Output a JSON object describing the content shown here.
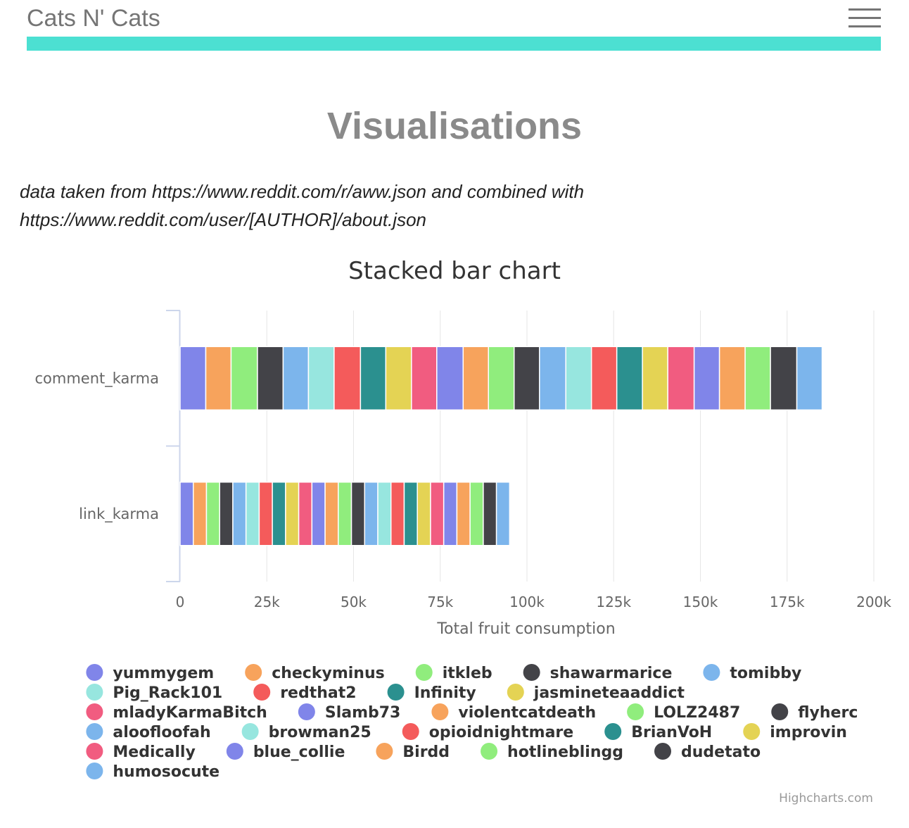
{
  "header": {
    "brand": "Cats N' Cats",
    "menu_icon": "hamburger-menu-icon",
    "accent_color": "#4ce0d2"
  },
  "page": {
    "title": "Visualisations",
    "description_line1": "data taken from https://www.reddit.com/r/aww.json and combined with",
    "description_line2": "https://www.reddit.com/user/[AUTHOR]/about.json"
  },
  "chart_data": {
    "type": "bar",
    "orientation": "horizontal",
    "stacking": "normal",
    "title": "Stacked bar chart",
    "xlabel": "Total fruit consumption",
    "categories": [
      "comment_karma",
      "link_karma"
    ],
    "xlim": [
      0,
      200000
    ],
    "ticks": [
      "0",
      "25k",
      "50k",
      "75k",
      "100k",
      "125k",
      "150k",
      "175k",
      "200k"
    ],
    "grid": true,
    "legend_position": "bottom",
    "credits": "Highcharts.com",
    "series": [
      {
        "name": "yummygem",
        "color": "#8085e9",
        "values": [
          7400,
          3800
        ]
      },
      {
        "name": "checkyminus",
        "color": "#f7a35c",
        "values": [
          7300,
          3800
        ]
      },
      {
        "name": "itkleb",
        "color": "#90ed7d",
        "values": [
          7600,
          3800
        ]
      },
      {
        "name": "shawarmarice",
        "color": "#434348",
        "values": [
          7400,
          3800
        ]
      },
      {
        "name": "tomibby",
        "color": "#7cb5ec",
        "values": [
          7300,
          3800
        ]
      },
      {
        "name": "Pig_Rack101",
        "color": "#97e6df",
        "values": [
          7400,
          3800
        ]
      },
      {
        "name": "redthat2",
        "color": "#f45b5b",
        "values": [
          7600,
          3800
        ]
      },
      {
        "name": "Infinity",
        "color": "#2b908f",
        "values": [
          7300,
          3800
        ]
      },
      {
        "name": "jasmineteaaddict",
        "color": "#e4d354",
        "values": [
          7400,
          3800
        ]
      },
      {
        "name": "mladyKarmaBitch",
        "color": "#f15c80",
        "values": [
          7300,
          3800
        ]
      },
      {
        "name": "Slamb73",
        "color": "#8085e9",
        "values": [
          7600,
          3800
        ]
      },
      {
        "name": "violentcatdeath",
        "color": "#f7a35c",
        "values": [
          7300,
          3800
        ]
      },
      {
        "name": "LOLZ2487",
        "color": "#90ed7d",
        "values": [
          7400,
          3800
        ]
      },
      {
        "name": "flyherc",
        "color": "#434348",
        "values": [
          7300,
          3800
        ]
      },
      {
        "name": "aloofloofah",
        "color": "#7cb5ec",
        "values": [
          7600,
          3800
        ]
      },
      {
        "name": "browman25",
        "color": "#97e6df",
        "values": [
          7400,
          3800
        ]
      },
      {
        "name": "opioidnightmare",
        "color": "#f45b5b",
        "values": [
          7300,
          3800
        ]
      },
      {
        "name": "BrianVoH",
        "color": "#2b908f",
        "values": [
          7400,
          3800
        ]
      },
      {
        "name": "improvin",
        "color": "#e4d354",
        "values": [
          7300,
          3800
        ]
      },
      {
        "name": "Medically",
        "color": "#f15c80",
        "values": [
          7600,
          3800
        ]
      },
      {
        "name": "blue_collie",
        "color": "#8085e9",
        "values": [
          7300,
          3800
        ]
      },
      {
        "name": "Birdd",
        "color": "#f7a35c",
        "values": [
          7400,
          3800
        ]
      },
      {
        "name": "hotlineblingg",
        "color": "#90ed7d",
        "values": [
          7300,
          3800
        ]
      },
      {
        "name": "dudetato",
        "color": "#434348",
        "values": [
          7600,
          3800
        ]
      },
      {
        "name": "humosocute",
        "color": "#7cb5ec",
        "values": [
          7300,
          3800
        ]
      }
    ]
  }
}
